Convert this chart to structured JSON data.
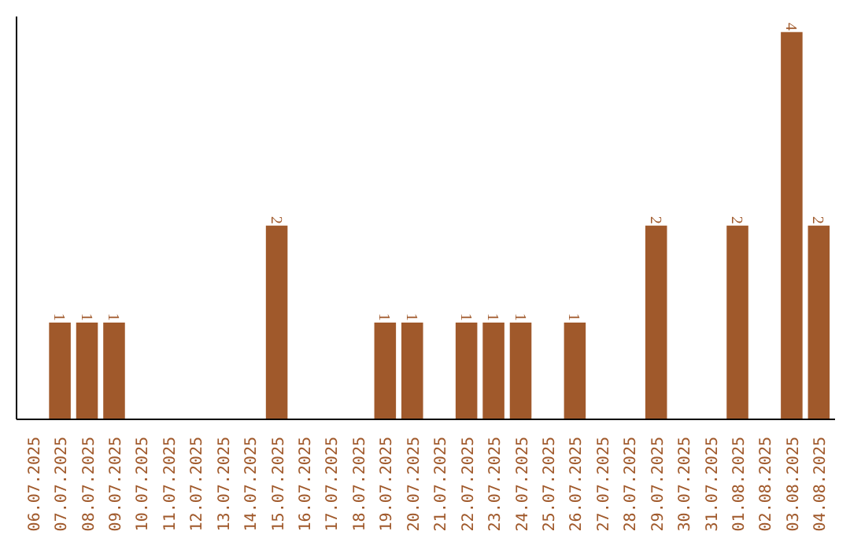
{
  "chart_data": {
    "type": "bar",
    "categories": [
      "06.07.2025",
      "07.07.2025",
      "08.07.2025",
      "09.07.2025",
      "10.07.2025",
      "11.07.2025",
      "12.07.2025",
      "13.07.2025",
      "14.07.2025",
      "15.07.2025",
      "16.07.2025",
      "17.07.2025",
      "18.07.2025",
      "19.07.2025",
      "20.07.2025",
      "21.07.2025",
      "22.07.2025",
      "23.07.2025",
      "24.07.2025",
      "25.07.2025",
      "26.07.2025",
      "27.07.2025",
      "28.07.2025",
      "29.07.2025",
      "30.07.2025",
      "31.07.2025",
      "01.08.2025",
      "02.08.2025",
      "03.08.2025",
      "04.08.2025"
    ],
    "values": [
      0,
      1,
      1,
      1,
      0,
      0,
      0,
      0,
      0,
      2,
      0,
      0,
      0,
      1,
      1,
      0,
      1,
      1,
      1,
      0,
      1,
      0,
      0,
      2,
      0,
      0,
      2,
      0,
      4,
      2
    ],
    "value_labels": [
      null,
      "1",
      "1",
      "1",
      null,
      null,
      null,
      null,
      null,
      "2",
      null,
      null,
      null,
      "1",
      "1",
      null,
      "1",
      "1",
      "1",
      null,
      "1",
      null,
      null,
      "2",
      null,
      null,
      "2",
      null,
      "4",
      "2"
    ],
    "color": "#a0592b",
    "ylim": [
      0,
      4.16
    ],
    "tick_labels": "x",
    "grid": false
  }
}
